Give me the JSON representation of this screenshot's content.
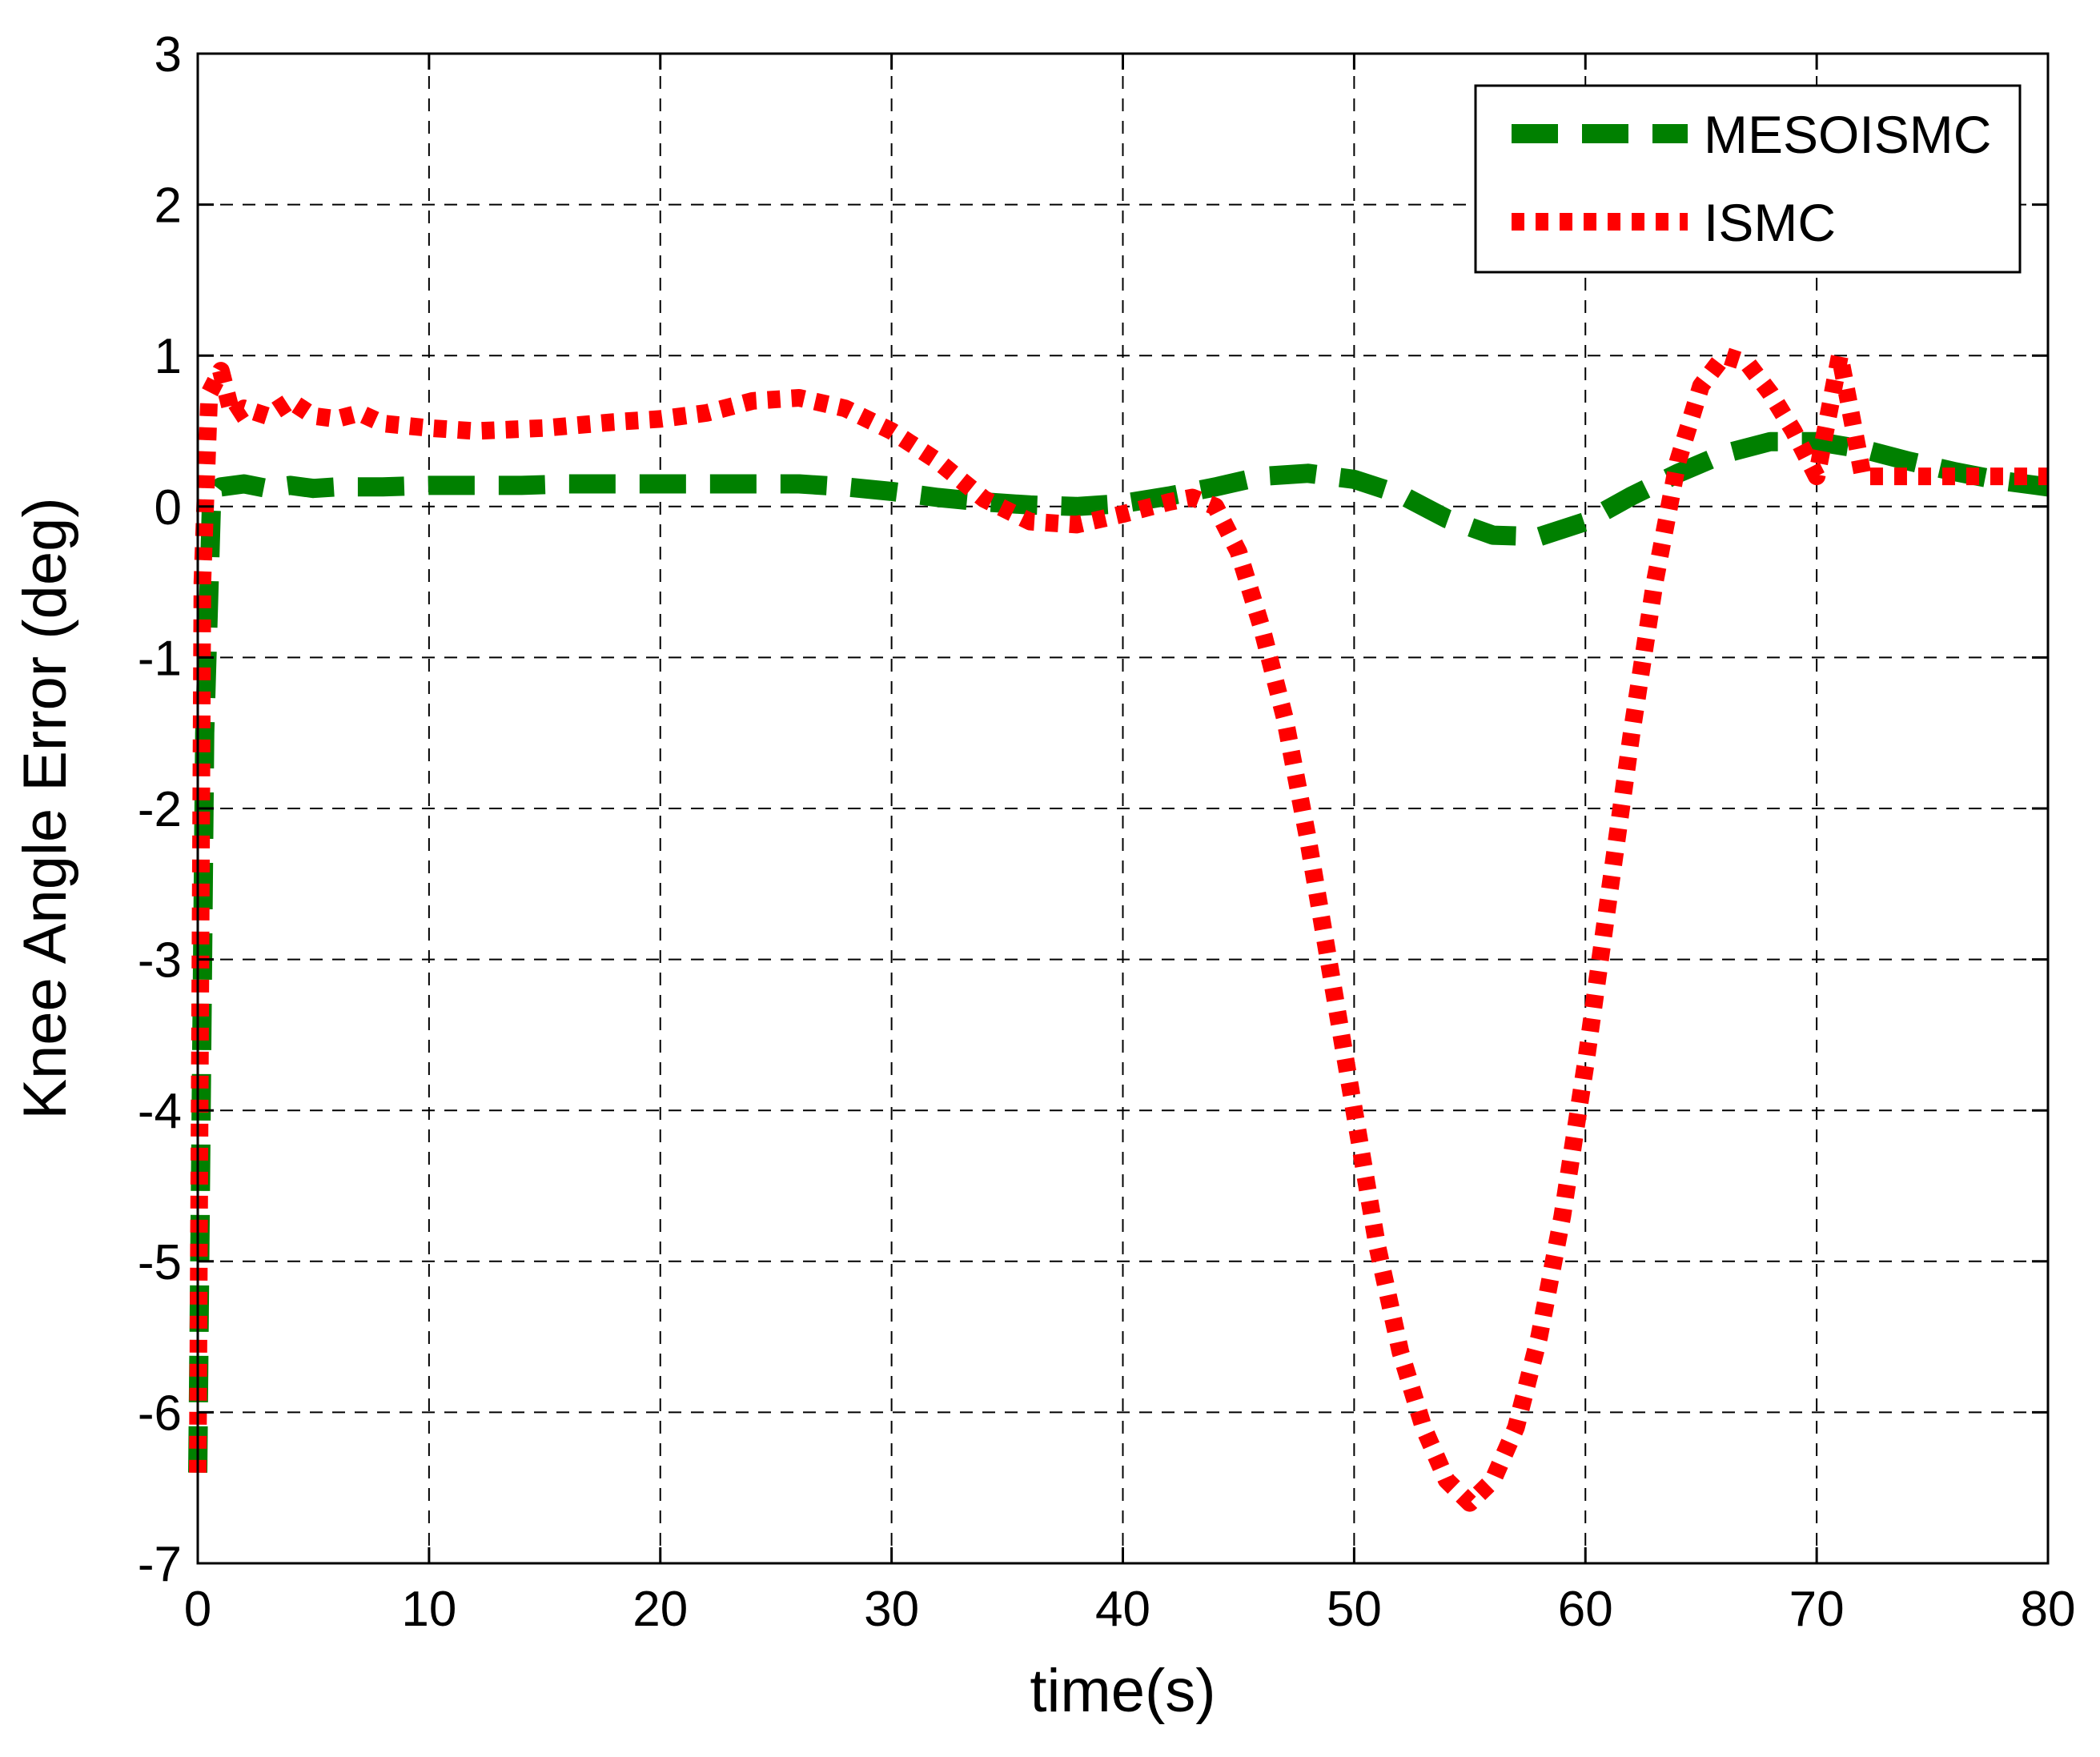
{
  "chart_data": {
    "type": "line",
    "title": "",
    "xlabel": "time(s)",
    "ylabel": "Knee Angle Error (deg)",
    "xlim": [
      0,
      80
    ],
    "ylim": [
      -7,
      3
    ],
    "xticks": [
      0,
      10,
      20,
      30,
      40,
      50,
      60,
      70,
      80
    ],
    "yticks": [
      3,
      2,
      1,
      0,
      -1,
      -2,
      -3,
      -4,
      -5,
      -6,
      -7
    ],
    "xtick_labels": [
      "0",
      "10",
      "20",
      "30",
      "40",
      "50",
      "60",
      "70",
      "80"
    ],
    "ytick_labels": [
      "3",
      "2",
      "1",
      "0",
      "-1",
      "-2",
      "-3",
      "-4",
      "-5",
      "-6",
      "-7"
    ],
    "grid": true,
    "legend_position": "top-right",
    "series": [
      {
        "name": "MESOISMC",
        "color": "#008000",
        "style": "dashed",
        "x": [
          0,
          0.3,
          0.6,
          1,
          2,
          3,
          4,
          5,
          6,
          8,
          10,
          12,
          14,
          16,
          18,
          20,
          22,
          24,
          26,
          28,
          30,
          32,
          34,
          36,
          38,
          40,
          42,
          44,
          46,
          48,
          50,
          52,
          54,
          56,
          58,
          60,
          62,
          64,
          66,
          68,
          70,
          72,
          74,
          76,
          78,
          80
        ],
        "y": [
          -6.4,
          -1.5,
          0.05,
          0.13,
          0.15,
          0.12,
          0.14,
          0.12,
          0.13,
          0.13,
          0.14,
          0.14,
          0.14,
          0.15,
          0.15,
          0.15,
          0.15,
          0.15,
          0.15,
          0.13,
          0.1,
          0.06,
          0.03,
          0.01,
          0.0,
          0.02,
          0.07,
          0.13,
          0.2,
          0.22,
          0.18,
          0.08,
          -0.08,
          -0.19,
          -0.2,
          -0.1,
          0.07,
          0.22,
          0.35,
          0.43,
          0.43,
          0.38,
          0.3,
          0.23,
          0.17,
          0.13
        ]
      },
      {
        "name": "ISMC",
        "color": "#ff0000",
        "style": "dotted",
        "x": [
          0,
          0.2,
          0.5,
          1,
          1.5,
          2,
          3,
          4,
          5,
          6,
          7,
          8,
          10,
          12,
          15,
          18,
          20,
          22,
          24,
          26,
          28,
          30,
          32,
          34,
          36,
          38,
          40,
          42,
          43,
          44,
          45,
          46,
          47,
          48,
          49,
          50,
          51,
          52,
          53,
          54,
          55,
          56,
          57,
          58,
          59,
          60,
          61,
          62,
          63,
          64,
          65,
          66,
          67,
          68,
          69,
          70,
          71,
          72,
          73,
          74,
          75,
          76,
          77,
          78,
          79,
          80
        ],
        "y": [
          -6.4,
          -0.5,
          0.75,
          0.9,
          0.6,
          0.65,
          0.6,
          0.7,
          0.6,
          0.58,
          0.62,
          0.55,
          0.52,
          0.5,
          0.52,
          0.56,
          0.58,
          0.62,
          0.7,
          0.72,
          0.65,
          0.5,
          0.3,
          0.05,
          -0.1,
          -0.12,
          -0.05,
          0.03,
          0.06,
          0.0,
          -0.3,
          -0.8,
          -1.4,
          -2.2,
          -3.1,
          -4.0,
          -4.9,
          -5.6,
          -6.1,
          -6.45,
          -6.6,
          -6.45,
          -6.1,
          -5.5,
          -4.7,
          -3.7,
          -2.6,
          -1.5,
          -0.5,
          0.3,
          0.8,
          1.0,
          0.95,
          0.75,
          0.5,
          0.2,
          1.0,
          0.2,
          0.2,
          0.2,
          0.2,
          0.2,
          0.2,
          0.2,
          0.2,
          0.2
        ]
      }
    ]
  }
}
